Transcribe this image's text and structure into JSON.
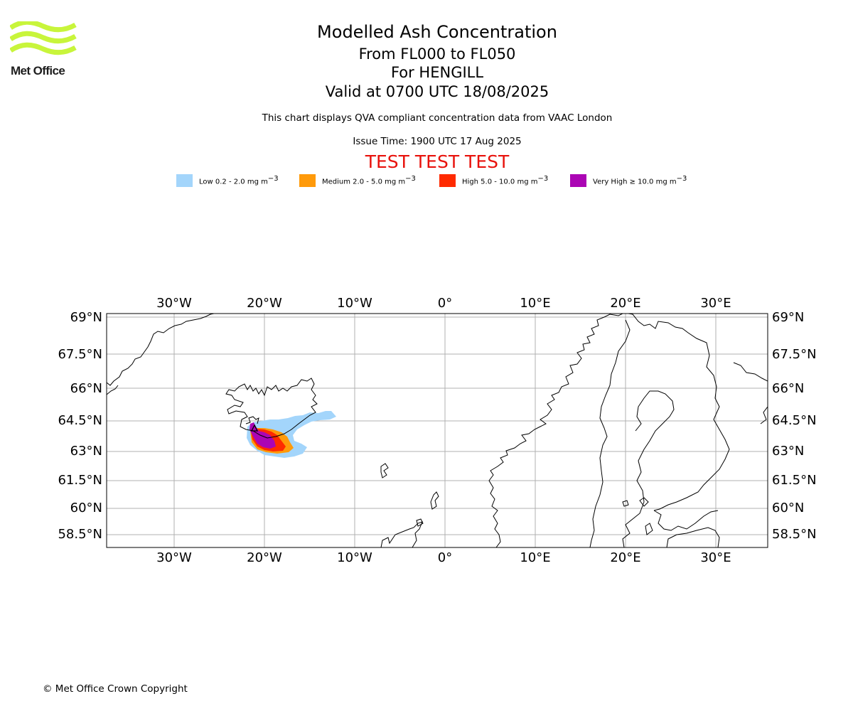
{
  "logo": {
    "text": "Met Office",
    "wave_color": "#c8f53b"
  },
  "title": {
    "line1": "Modelled Ash Concentration",
    "line2": "From FL000 to FL050",
    "line3": "For HENGILL",
    "line4": "Valid at 0700 UTC 18/08/2025"
  },
  "subtitle": "This chart displays QVA compliant concentration data from VAAC London",
  "issue_time": "Issue Time: 1900 UTC 17 Aug 2025",
  "test_banner": "TEST TEST TEST",
  "test_color": "#e8120c",
  "legend": [
    {
      "label": "Low 0.2 - 2.0 mg m",
      "color": "#a3d5fb"
    },
    {
      "label": "Medium 2.0 - 5.0 mg m",
      "color": "#ff9a0a"
    },
    {
      "label": "High 5.0 - 10.0 mg m",
      "color": "#ff2a00"
    },
    {
      "label": "Very High  ≥  10.0 mg m",
      "color": "#ab05b4"
    }
  ],
  "legend_unit_exponent": "−3",
  "map": {
    "lon_labels": [
      "30°W",
      "20°W",
      "10°W",
      "0°",
      "10°E",
      "20°E",
      "30°E"
    ],
    "lat_labels": [
      "69°N",
      "67.5°N",
      "66°N",
      "64.5°N",
      "63°N",
      "61.5°N",
      "60°N",
      "58.5°N"
    ],
    "gridlines": true,
    "volcano_marker": "triangle"
  },
  "copyright": "© Met Office Crown Copyright"
}
